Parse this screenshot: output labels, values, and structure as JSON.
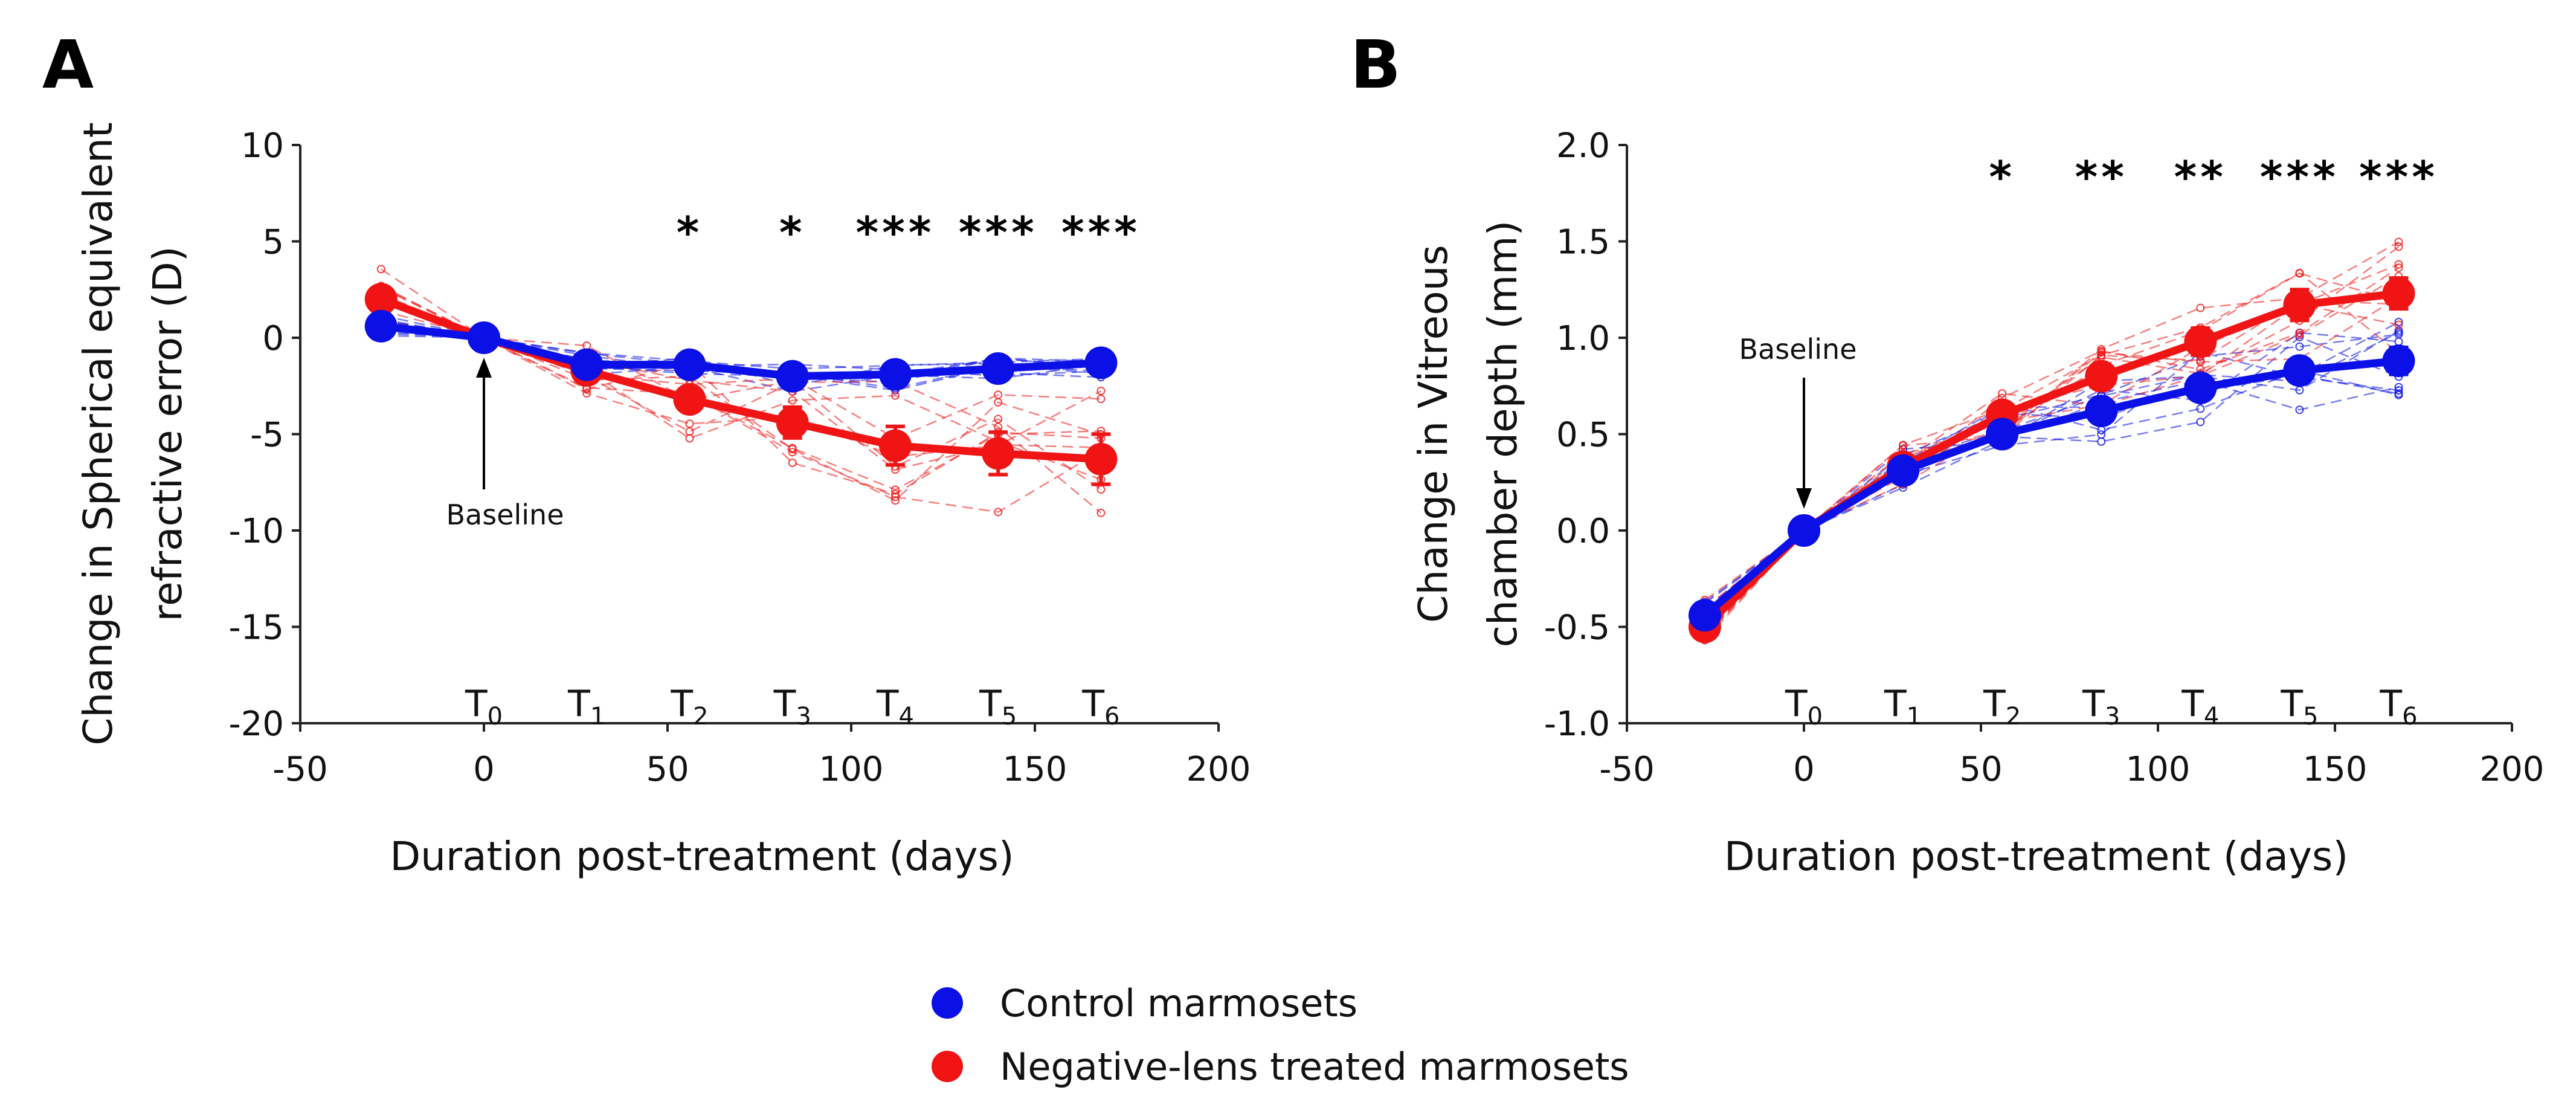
{
  "legend": {
    "control": "Control marmosets",
    "treated": "Negative-lens treated marmosets"
  },
  "colors": {
    "control": "#0a10e6",
    "treated": "#f01414",
    "axis": "#222222"
  },
  "chart_data": [
    {
      "panel": "A",
      "type": "line",
      "xlabel": "Duration post-treatment (days)",
      "ylabel_lines": [
        "Change in Spherical equivalent",
        "refractive error (D)"
      ],
      "xlim": [
        -50,
        200
      ],
      "ylim": [
        -20,
        10
      ],
      "xticks": [
        -50,
        0,
        50,
        100,
        150,
        200
      ],
      "yticks": [
        10,
        5,
        0,
        -5,
        -10,
        -15,
        -20
      ],
      "timepoints": [
        {
          "label": "T",
          "sub": "0",
          "x": 0
        },
        {
          "label": "T",
          "sub": "1",
          "x": 28
        },
        {
          "label": "T",
          "sub": "2",
          "x": 56
        },
        {
          "label": "T",
          "sub": "3",
          "x": 84
        },
        {
          "label": "T",
          "sub": "4",
          "x": 112
        },
        {
          "label": "T",
          "sub": "5",
          "x": 140
        },
        {
          "label": "T",
          "sub": "6",
          "x": 168
        }
      ],
      "annotation": "Baseline",
      "significance": [
        {
          "x": 56,
          "text": "*"
        },
        {
          "x": 84,
          "text": "*"
        },
        {
          "x": 112,
          "text": "***"
        },
        {
          "x": 140,
          "text": "***"
        },
        {
          "x": 168,
          "text": "***"
        }
      ],
      "x": [
        -28,
        0,
        28,
        56,
        84,
        112,
        140,
        168
      ],
      "series": [
        {
          "name": "Control marmosets",
          "values": [
            0.6,
            0,
            -1.4,
            -1.4,
            -2.0,
            -1.9,
            -1.6,
            -1.3
          ],
          "err": [
            0.5,
            0,
            0.3,
            0.4,
            0.4,
            0.4,
            0.5,
            0.6
          ]
        },
        {
          "name": "Negative-lens treated marmosets",
          "values": [
            2.0,
            0,
            -1.7,
            -3.2,
            -4.4,
            -5.6,
            -6.0,
            -6.3
          ],
          "err": [
            0.5,
            0,
            0.4,
            0.6,
            0.8,
            1.0,
            1.1,
            1.3
          ]
        }
      ]
    },
    {
      "panel": "B",
      "type": "line",
      "xlabel": "Duration post-treatment (days)",
      "ylabel_lines": [
        "Change in Vitreous",
        "chamber depth (mm)"
      ],
      "xlim": [
        -50,
        200
      ],
      "ylim": [
        -1.0,
        2.0
      ],
      "xticks": [
        -50,
        0,
        50,
        100,
        150,
        200
      ],
      "yticks": [
        "2.0",
        "1.5",
        "1.0",
        "0.5",
        "0.0",
        "-0.5",
        "-1.0"
      ],
      "timepoints": [
        {
          "label": "T",
          "sub": "0",
          "x": 0
        },
        {
          "label": "T",
          "sub": "1",
          "x": 28
        },
        {
          "label": "T",
          "sub": "2",
          "x": 56
        },
        {
          "label": "T",
          "sub": "3",
          "x": 84
        },
        {
          "label": "T",
          "sub": "4",
          "x": 112
        },
        {
          "label": "T",
          "sub": "5",
          "x": 140
        },
        {
          "label": "T",
          "sub": "6",
          "x": 168
        }
      ],
      "annotation": "Baseline",
      "significance": [
        {
          "x": 56,
          "text": "*"
        },
        {
          "x": 84,
          "text": "**"
        },
        {
          "x": 112,
          "text": "**"
        },
        {
          "x": 140,
          "text": "***"
        },
        {
          "x": 168,
          "text": "***"
        }
      ],
      "x": [
        -28,
        0,
        28,
        56,
        84,
        112,
        140,
        168
      ],
      "series": [
        {
          "name": "Control marmosets",
          "values": [
            -0.44,
            0,
            0.31,
            0.5,
            0.62,
            0.74,
            0.83,
            0.88
          ],
          "err": [
            0.04,
            0,
            0.03,
            0.04,
            0.05,
            0.05,
            0.06,
            0.07
          ]
        },
        {
          "name": "Negative-lens treated marmosets",
          "values": [
            -0.5,
            0,
            0.33,
            0.6,
            0.8,
            0.98,
            1.17,
            1.23
          ],
          "err": [
            0.04,
            0,
            0.03,
            0.05,
            0.06,
            0.07,
            0.08,
            0.08
          ]
        }
      ]
    }
  ]
}
